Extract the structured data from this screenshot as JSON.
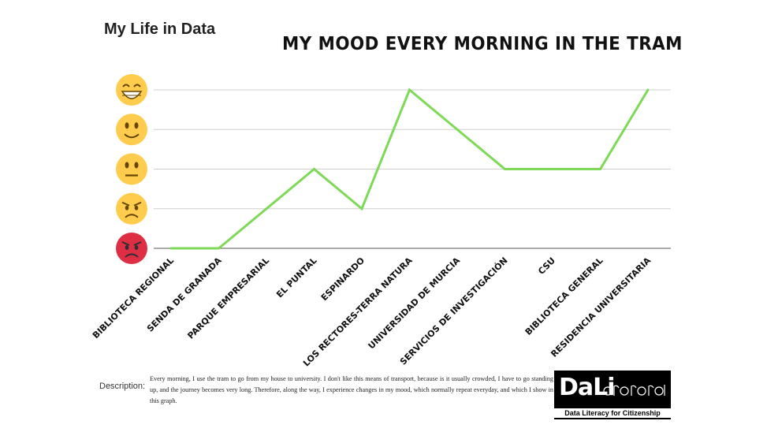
{
  "header": {
    "title": "My Life in Data"
  },
  "chart_data": {
    "type": "line",
    "title": "MY MOOD EVERY MORNING IN THE TRAM",
    "xlabel": "",
    "ylabel": "",
    "categories": [
      "BIBLIOTECA REGIONAL",
      "SENDA DE GRANADA",
      "PARQUE EMPRESARIAL",
      "EL PUNTAL",
      "ESPINARDO",
      "LOS RECTORES-TERRA NATURA",
      "UNIVERSIDAD DE MURCIA",
      "SERVICIOS DE INVESTIGACIÓN",
      "CSU",
      "BIBLIOTECA GENERAL",
      "RESIDENCIA UNIVERSITARIA"
    ],
    "series": [
      {
        "values": [
          1,
          1,
          2,
          3,
          2,
          5,
          4,
          3,
          3,
          3,
          5
        ]
      }
    ],
    "ylim": [
      1,
      5
    ],
    "y_ticks": [
      {
        "value": 1,
        "icon": "angry-red-face-icon",
        "color": "#dd2e44"
      },
      {
        "value": 2,
        "icon": "angry-face-icon",
        "color": "#ffcc4d"
      },
      {
        "value": 3,
        "icon": "neutral-face-icon",
        "color": "#ffcc4d"
      },
      {
        "value": 4,
        "icon": "slightly-smiling-face-icon",
        "color": "#ffcc4d"
      },
      {
        "value": 5,
        "icon": "grinning-face-icon",
        "color": "#ffcc4d"
      }
    ],
    "grid": true,
    "line_color": "#7ed957"
  },
  "description": {
    "label": "Description:",
    "text": "Every morning, I use the tram to go from my house to university. I don't like this means of transport, because is it usually crowded, I have to go standing up, and the journey becomes very long. Therefore, along the way, I experience changes in my mood, which normally repeat everyday, and which I show in this graph."
  },
  "logo": {
    "main": "DaLi",
    "tagline": "Data Literacy for Citizenship"
  }
}
